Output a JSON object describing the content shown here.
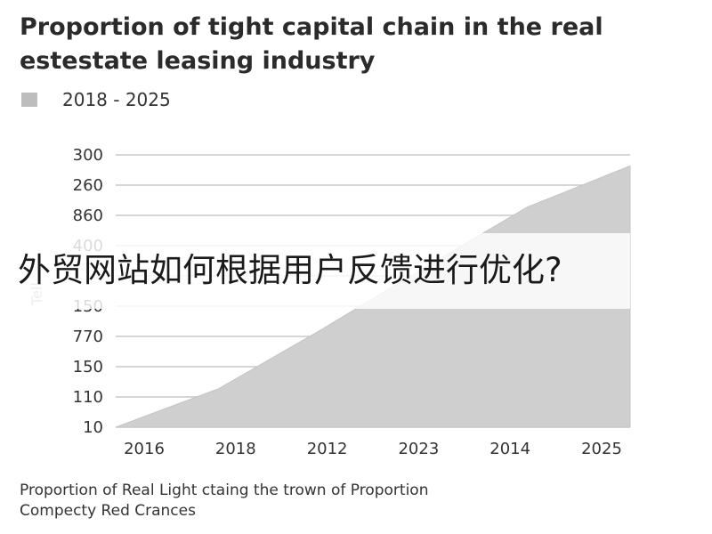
{
  "overlay_text": "外贸网站如何根据用户反馈进行优化?",
  "caption": {
    "line1": "Proportion of Real Light ctaing the trown of Proportion",
    "line2": "Compecty Red Crances"
  },
  "colors": {
    "area": "#cfcfcf",
    "area_edge": "#c4c4c4",
    "grid": "#c9c9c9",
    "legend_swatch": "#bdbdbd"
  },
  "chart_data": {
    "type": "area",
    "title_line1": "Proportion of tight capital chain in the real",
    "title_line2": "estestate leasing industry",
    "legend": [
      "2018 - 2025"
    ],
    "legend_placement": "top-left",
    "grid": true,
    "ylabel": "Tell",
    "categories": [
      "2016",
      "2018",
      "2012",
      "2023",
      "2014",
      "2025"
    ],
    "y_tick_labels": [
      "300",
      "260",
      "860",
      "400",
      "",
      "150",
      "770",
      "150",
      "110",
      "10"
    ],
    "series": [
      {
        "name": "2018 - 2025",
        "values": [
          10,
          150,
          365,
          590,
          810,
          960
        ]
      }
    ],
    "ylim": [
      10,
      1000
    ]
  }
}
